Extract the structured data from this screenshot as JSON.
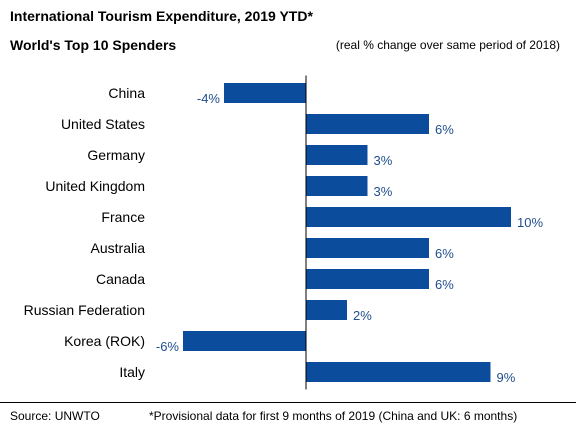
{
  "header": {
    "title": "International Tourism Expenditure, 2019 YTD*",
    "subtitle": "World's Top 10 Spenders",
    "note": "(real % change over same period of 2018)"
  },
  "footer": {
    "source": "Source: UNWTO",
    "footnote": "*Provisional data for first 9 months of 2019 (China and UK: 6 months)"
  },
  "chart_data": {
    "type": "bar",
    "orientation": "horizontal",
    "categories": [
      "China",
      "United States",
      "Germany",
      "United Kingdom",
      "France",
      "Australia",
      "Canada",
      "Russian Federation",
      "Korea (ROK)",
      "Italy"
    ],
    "values": [
      -4,
      6,
      3,
      3,
      10,
      6,
      6,
      2,
      -6,
      9
    ],
    "value_labels": [
      "-4%",
      "6%",
      "3%",
      "3%",
      "10%",
      "6%",
      "6%",
      "2%",
      "-6%",
      "9%"
    ],
    "xlim": [
      -6,
      10
    ],
    "bar_color": "#0b4c9c",
    "label_color": "#1f4e8c"
  }
}
